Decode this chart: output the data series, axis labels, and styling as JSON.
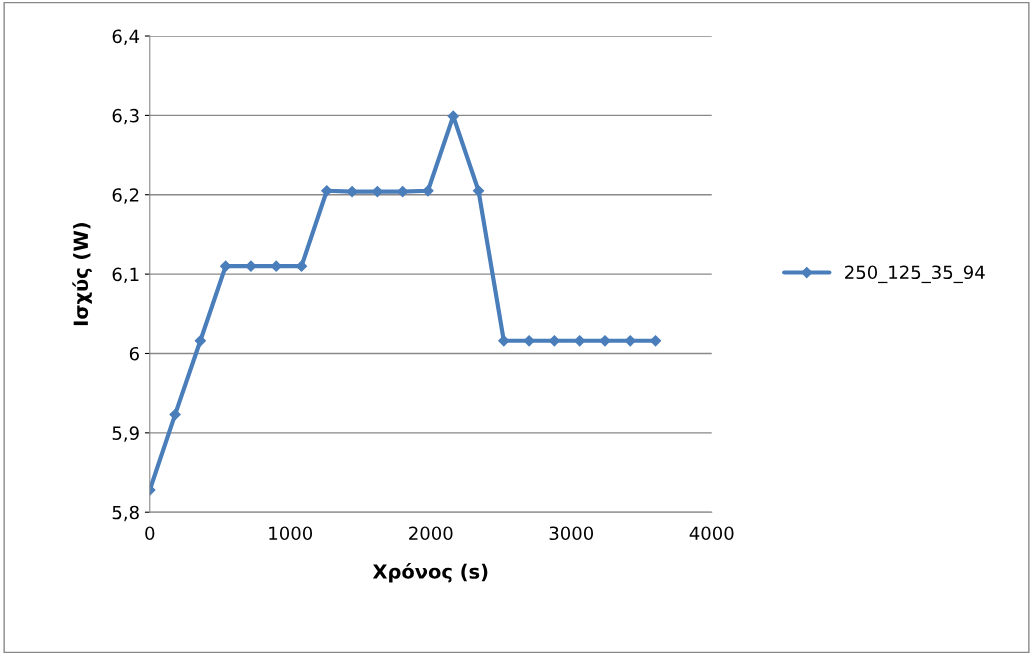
{
  "chart_data": {
    "type": "line",
    "xlabel": "Χρόνος (s)",
    "ylabel": "Ισχύς (W)",
    "x": [
      0,
      180,
      360,
      540,
      720,
      900,
      1080,
      1260,
      1440,
      1620,
      1800,
      1980,
      2160,
      2340,
      2520,
      2700,
      2880,
      3060,
      3240,
      3420,
      3600
    ],
    "series": [
      {
        "name": "250_125_35_94",
        "color": "#4a7ebb",
        "values": [
          5.828,
          5.923,
          6.016,
          6.11,
          6.11,
          6.11,
          6.11,
          6.205,
          6.204,
          6.204,
          6.204,
          6.205,
          6.299,
          6.205,
          6.016,
          6.016,
          6.016,
          6.016,
          6.016,
          6.016,
          6.016
        ]
      }
    ],
    "xlim": [
      0,
      4000
    ],
    "xticks": [
      0,
      1000,
      2000,
      3000,
      4000
    ],
    "ylim": [
      5.8,
      6.4
    ],
    "yticks": [
      {
        "value": 5.8,
        "label": "5,8"
      },
      {
        "value": 5.9,
        "label": "5,9"
      },
      6,
      {
        "value": 6.1,
        "label": "6,1"
      },
      {
        "value": 6.2,
        "label": "6,2"
      },
      {
        "value": 6.3,
        "label": "6,3"
      },
      {
        "value": 6.4,
        "label": "6,4"
      }
    ],
    "grid": "y",
    "legend": "right",
    "marker": "diamond",
    "line_style": "solid"
  }
}
